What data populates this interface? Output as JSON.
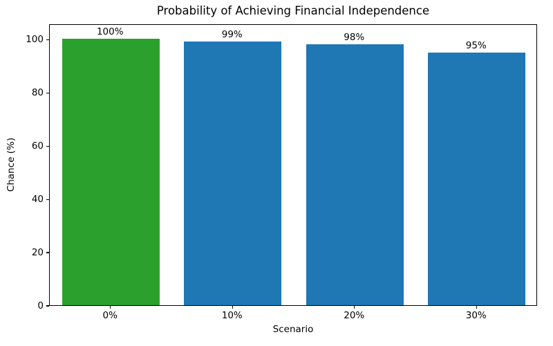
{
  "chart_data": {
    "type": "bar",
    "title": "Probability of Achieving Financial Independence",
    "xlabel": "Scenario",
    "ylabel": "Chance (%)",
    "categories": [
      "0%",
      "10%",
      "20%",
      "30%"
    ],
    "values": [
      100,
      99,
      98,
      95
    ],
    "bar_labels": [
      "100%",
      "99%",
      "98%",
      "95%"
    ],
    "bar_colors": [
      "#2ca02c",
      "#1f77b4",
      "#1f77b4",
      "#1f77b4"
    ],
    "yticks": [
      0,
      20,
      40,
      60,
      80,
      100
    ],
    "ylim": [
      0,
      105.8
    ],
    "grid": false,
    "legend": "none",
    "background_color": "#ffffff",
    "spine_color": "#000000"
  }
}
